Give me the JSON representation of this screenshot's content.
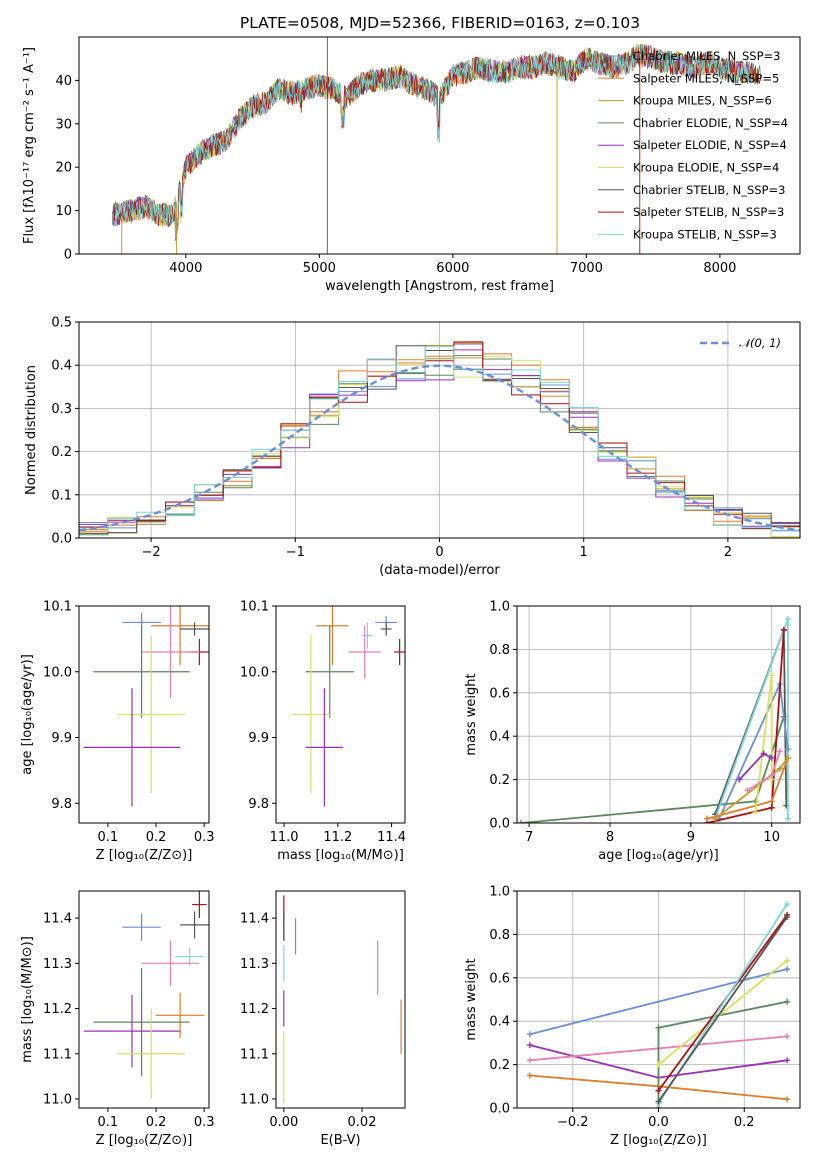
{
  "figure": {
    "title": "PLATE=0508, MJD=52366, FIBERID=0163, z=0.103"
  },
  "chart_data": [
    {
      "id": "spectrum",
      "type": "line",
      "xlabel": "wavelength [Angstrom, rest frame]",
      "ylabel": "Flux [fλ10⁻¹⁷ erg cm⁻² s⁻¹ A⁻¹]",
      "xlim": [
        3200,
        8600
      ],
      "ylim": [
        0,
        50
      ],
      "xticks": [
        4000,
        5000,
        6000,
        7000,
        8000
      ],
      "yticks": [
        0,
        10,
        20,
        30,
        40
      ],
      "grid": false,
      "legend_position": "top-right",
      "continuum_x": [
        3450,
        3600,
        3700,
        3800,
        3900,
        3950,
        4000,
        4100,
        4200,
        4300,
        4400,
        4500,
        4600,
        4700,
        4800,
        4900,
        5000,
        5100,
        5200,
        5300,
        5400,
        5500,
        5600,
        5700,
        5800,
        5900,
        6000,
        6100,
        6200,
        6300,
        6400,
        6500,
        6600,
        6700,
        6800,
        6900,
        7000,
        7100,
        7200,
        7300,
        7400,
        7500,
        7600,
        7700,
        7800,
        7900,
        8000,
        8100,
        8200,
        8300
      ],
      "continuum_y": [
        9,
        10,
        11,
        9,
        9,
        14,
        20,
        23,
        25,
        26,
        31,
        34,
        35,
        38,
        37,
        38,
        39,
        38,
        36,
        39,
        40,
        40,
        41,
        39,
        38,
        36,
        41,
        42,
        43,
        42,
        42,
        43,
        43,
        44,
        43,
        42,
        45,
        44,
        43,
        44,
        46,
        45,
        44,
        44,
        43,
        44,
        43,
        42,
        42,
        41
      ],
      "series": [
        {
          "name": "Chabrier MILES, N_SSP=3",
          "color": "#6a8fd8"
        },
        {
          "name": "Salpeter MILES, N_SSP=5",
          "color": "#e07b2c"
        },
        {
          "name": "Kroupa MILES, N_SSP=6",
          "color": "#c9962a"
        },
        {
          "name": "Chabrier ELODIE, N_SSP=4",
          "color": "#5a8a5a"
        },
        {
          "name": "Salpeter ELODIE, N_SSP=4",
          "color": "#9b30b8"
        },
        {
          "name": "Kroupa ELODIE, N_SSP=4",
          "color": "#d8e060"
        },
        {
          "name": "Chabrier STELIB, N_SSP=3",
          "color": "#555555"
        },
        {
          "name": "Salpeter STELIB, N_SSP=3",
          "color": "#b01010"
        },
        {
          "name": "Kroupa STELIB, N_SSP=3",
          "color": "#7ad8d8"
        }
      ]
    },
    {
      "id": "residuals",
      "type": "line",
      "xlabel": "(data-model)/error",
      "ylabel": "Normed distribution",
      "xlim": [
        -2.5,
        2.5
      ],
      "ylim": [
        0,
        0.5
      ],
      "xticks": [
        -2,
        -1,
        0,
        1,
        2
      ],
      "xtick_labels": [
        "−2",
        "−1",
        "0",
        "1",
        "2"
      ],
      "yticks": [
        0.0,
        0.1,
        0.2,
        0.3,
        0.4,
        0.5
      ],
      "grid": true,
      "legend_position": "top-right",
      "reference_curve": {
        "name": "𝒩(0, 1)",
        "mean": 0,
        "sigma": 1
      },
      "histogram_bin_edges": [
        -2.5,
        -2.3,
        -2.1,
        -1.9,
        -1.7,
        -1.5,
        -1.3,
        -1.1,
        -0.9,
        -0.7,
        -0.5,
        -0.3,
        -0.1,
        0.1,
        0.3,
        0.5,
        0.7,
        0.9,
        1.1,
        1.3,
        1.5,
        1.7,
        1.9,
        2.1,
        2.3,
        2.5
      ],
      "histogram_mean": [
        0.02,
        0.03,
        0.05,
        0.07,
        0.1,
        0.14,
        0.19,
        0.24,
        0.3,
        0.35,
        0.38,
        0.4,
        0.41,
        0.41,
        0.4,
        0.37,
        0.33,
        0.27,
        0.21,
        0.16,
        0.12,
        0.08,
        0.05,
        0.04,
        0.02
      ]
    },
    {
      "id": "age-vs-Z",
      "type": "scatter",
      "xlabel": "Z [log₁₀(Z/Z⊙)]",
      "ylabel": "age  [log₁₀(age/yr)]",
      "xlim": [
        0.04,
        0.31
      ],
      "ylim": [
        9.77,
        10.1
      ],
      "xticks": [
        0.1,
        0.2,
        0.3
      ],
      "yticks": [
        9.8,
        9.9,
        10.0,
        10.1
      ],
      "points": [
        {
          "x": 0.17,
          "y": 10.075,
          "xerr": 0.04,
          "yerr": 0.015,
          "color": "#6a8fd8"
        },
        {
          "x": 0.25,
          "y": 10.07,
          "xerr": 0.06,
          "yerr": 0.06,
          "color": "#e07b2c"
        },
        {
          "x": 0.28,
          "y": 10.065,
          "xerr": 0.03,
          "yerr": 0.01,
          "color": "#555555"
        },
        {
          "x": 0.29,
          "y": 10.03,
          "xerr": 0.02,
          "yerr": 0.02,
          "color": "#b01010"
        },
        {
          "x": 0.23,
          "y": 10.03,
          "xerr": 0.06,
          "yerr": 0.07,
          "color": "#e87fb0"
        },
        {
          "x": 0.17,
          "y": 10.0,
          "xerr": 0.1,
          "yerr": 0.07,
          "color": "#5a8a5a"
        },
        {
          "x": 0.19,
          "y": 9.935,
          "xerr": 0.07,
          "yerr": 0.12,
          "color": "#d8e060"
        },
        {
          "x": 0.15,
          "y": 9.885,
          "xerr": 0.1,
          "yerr": 0.09,
          "color": "#9b30b8"
        }
      ]
    },
    {
      "id": "age-vs-mass",
      "type": "scatter",
      "xlabel": "mass [log₁₀(M/M⊙)]",
      "ylabel": "",
      "xlim": [
        10.97,
        11.45
      ],
      "ylim": [
        9.77,
        10.1
      ],
      "xticks": [
        11.0,
        11.2,
        11.4
      ],
      "yticks": [
        9.8,
        9.9,
        10.0,
        10.1
      ],
      "points": [
        {
          "x": 11.38,
          "y": 10.075,
          "xerr": 0.04,
          "yerr": 0.01,
          "color": "#6a8fd8"
        },
        {
          "x": 11.38,
          "y": 10.065,
          "xerr": 0.02,
          "yerr": 0.01,
          "color": "#555555"
        },
        {
          "x": 11.31,
          "y": 10.055,
          "xerr": 0.02,
          "yerr": 0.02,
          "color": "#7ad8d8"
        },
        {
          "x": 11.43,
          "y": 10.03,
          "xerr": 0.02,
          "yerr": 0.02,
          "color": "#b01010"
        },
        {
          "x": 11.18,
          "y": 10.07,
          "xerr": 0.06,
          "yerr": 0.06,
          "color": "#e07b2c"
        },
        {
          "x": 11.3,
          "y": 10.03,
          "xerr": 0.06,
          "yerr": 0.04,
          "color": "#e87fb0"
        },
        {
          "x": 11.17,
          "y": 10.0,
          "xerr": 0.09,
          "yerr": 0.07,
          "color": "#5a8a5a"
        },
        {
          "x": 11.1,
          "y": 9.935,
          "xerr": 0.07,
          "yerr": 0.12,
          "color": "#d8e060"
        },
        {
          "x": 11.15,
          "y": 9.885,
          "xerr": 0.07,
          "yerr": 0.09,
          "color": "#9b30b8"
        }
      ]
    },
    {
      "id": "weight-vs-age",
      "type": "line",
      "xlabel": "age  [log₁₀(age/yr)]",
      "ylabel": "mass weight",
      "xlim": [
        6.85,
        10.35
      ],
      "ylim": [
        0,
        1
      ],
      "xticks": [
        7,
        8,
        9,
        10
      ],
      "yticks": [
        0.0,
        0.2,
        0.4,
        0.6,
        0.8,
        1.0
      ],
      "grid": true,
      "series": [
        {
          "color": "#5a8a5a",
          "x": [
            6.9,
            9.8,
            10.15
          ],
          "y": [
            0.0,
            0.1,
            0.49
          ]
        },
        {
          "color": "#555555",
          "x": [
            9.3,
            10.15,
            10.18
          ],
          "y": [
            0.04,
            0.89,
            0.08
          ]
        },
        {
          "color": "#7ad8d8",
          "x": [
            9.3,
            10.2,
            10.2
          ],
          "y": [
            0.02,
            0.94,
            0.02
          ]
        },
        {
          "color": "#6a8fd8",
          "x": [
            9.35,
            10.1,
            10.2
          ],
          "y": [
            0.02,
            0.64,
            0.34
          ]
        },
        {
          "color": "#b01010",
          "x": [
            9.2,
            10.0,
            10.15
          ],
          "y": [
            0.0,
            0.07,
            0.89
          ]
        },
        {
          "color": "#e07b2c",
          "x": [
            9.2,
            10.0,
            10.2
          ],
          "y": [
            0.02,
            0.1,
            0.3
          ]
        },
        {
          "color": "#c9962a",
          "x": [
            9.3,
            10.1,
            10.2
          ],
          "y": [
            0.02,
            0.25,
            0.3
          ]
        },
        {
          "color": "#d8e060",
          "x": [
            9.8,
            10.0,
            10.0
          ],
          "y": [
            0.05,
            0.68,
            0.2
          ]
        },
        {
          "color": "#9b30b8",
          "x": [
            9.6,
            9.9,
            10.0
          ],
          "y": [
            0.2,
            0.32,
            0.3
          ]
        },
        {
          "color": "#e87fb0",
          "x": [
            9.7,
            10.0,
            10.1
          ],
          "y": [
            0.15,
            0.22,
            0.33
          ]
        }
      ]
    },
    {
      "id": "mass-vs-Z",
      "type": "scatter",
      "xlabel": "Z [log₁₀(Z/Z⊙)]",
      "ylabel": "mass [log₁₀(M/M⊙)]",
      "xlim": [
        0.04,
        0.31
      ],
      "ylim": [
        10.98,
        11.46
      ],
      "xticks": [
        0.1,
        0.2,
        0.3
      ],
      "yticks": [
        11.0,
        11.1,
        11.2,
        11.3,
        11.4
      ],
      "points": [
        {
          "x": 0.29,
          "y": 11.43,
          "xerr": 0.015,
          "yerr": 0.03,
          "color": "#b01010"
        },
        {
          "x": 0.28,
          "y": 11.385,
          "xerr": 0.03,
          "yerr": 0.03,
          "color": "#555555"
        },
        {
          "x": 0.17,
          "y": 11.38,
          "xerr": 0.04,
          "yerr": 0.03,
          "color": "#6a8fd8"
        },
        {
          "x": 0.27,
          "y": 11.315,
          "xerr": 0.03,
          "yerr": 0.02,
          "color": "#7ad8d8"
        },
        {
          "x": 0.23,
          "y": 11.3,
          "xerr": 0.06,
          "yerr": 0.05,
          "color": "#e87fb0"
        },
        {
          "x": 0.25,
          "y": 11.185,
          "xerr": 0.05,
          "yerr": 0.05,
          "color": "#e07b2c"
        },
        {
          "x": 0.17,
          "y": 11.17,
          "xerr": 0.1,
          "yerr": 0.12,
          "color": "#5a8a5a"
        },
        {
          "x": 0.15,
          "y": 11.15,
          "xerr": 0.1,
          "yerr": 0.08,
          "color": "#9b30b8"
        },
        {
          "x": 0.19,
          "y": 11.1,
          "xerr": 0.07,
          "yerr": 0.1,
          "color": "#d8e060"
        }
      ]
    },
    {
      "id": "mass-vs-EBV",
      "type": "scatter",
      "xlabel": "E(B-V)",
      "ylabel": "",
      "xlim": [
        -0.002,
        0.031
      ],
      "ylim": [
        10.98,
        11.46
      ],
      "xticks": [
        0.0,
        0.02
      ],
      "yticks": [
        11.0,
        11.1,
        11.2,
        11.3,
        11.4
      ],
      "points": [
        {
          "x": 0.0,
          "y": 11.4,
          "xerr": 0,
          "yerr": 0.05,
          "color": "#b01010"
        },
        {
          "x": 0.0,
          "y": 11.38,
          "xerr": 0,
          "yerr": 0.03,
          "color": "#555555"
        },
        {
          "x": 0.003,
          "y": 11.36,
          "xerr": 0,
          "yerr": 0.04,
          "color": "#6a8fd8"
        },
        {
          "x": 0.0,
          "y": 11.3,
          "xerr": 0,
          "yerr": 0.04,
          "color": "#7ad8d8"
        },
        {
          "x": 0.024,
          "y": 11.29,
          "xerr": 0,
          "yerr": 0.06,
          "color": "#e87fb0"
        },
        {
          "x": 0.0,
          "y": 11.2,
          "xerr": 0,
          "yerr": 0.04,
          "color": "#9b30b8"
        },
        {
          "x": 0.03,
          "y": 11.16,
          "xerr": 0,
          "yerr": 0.06,
          "color": "#e07b2c"
        },
        {
          "x": 0.0,
          "y": 11.07,
          "xerr": 0,
          "yerr": 0.08,
          "color": "#d8e060"
        }
      ]
    },
    {
      "id": "weight-vs-Z",
      "type": "line",
      "xlabel": "Z [log₁₀(Z/Z⊙)]",
      "ylabel": "mass weight",
      "xlim": [
        -0.33,
        0.33
      ],
      "ylim": [
        0,
        1
      ],
      "xticks": [
        -0.2,
        0.0,
        0.2
      ],
      "xtick_labels": [
        "−0.2",
        "0.0",
        "0.2"
      ],
      "yticks": [
        0.0,
        0.2,
        0.4,
        0.6,
        0.8,
        1.0
      ],
      "grid": true,
      "series": [
        {
          "color": "#6a8fd8",
          "x": [
            -0.3,
            0.3
          ],
          "y": [
            0.34,
            0.64
          ]
        },
        {
          "color": "#9b30b8",
          "x": [
            -0.3,
            0.0,
            0.3
          ],
          "y": [
            0.29,
            0.14,
            0.22
          ]
        },
        {
          "color": "#e87fb0",
          "x": [
            -0.3,
            0.3
          ],
          "y": [
            0.22,
            0.33
          ]
        },
        {
          "color": "#e07b2c",
          "x": [
            -0.3,
            0.0,
            0.3
          ],
          "y": [
            0.15,
            0.1,
            0.04
          ]
        },
        {
          "color": "#5a8a5a",
          "x": [
            0.0,
            0.0,
            0.3
          ],
          "y": [
            0.0,
            0.37,
            0.49
          ]
        },
        {
          "color": "#d8e060",
          "x": [
            0.0,
            0.3
          ],
          "y": [
            0.2,
            0.68
          ]
        },
        {
          "color": "#b01010",
          "x": [
            0.0,
            0.3
          ],
          "y": [
            0.08,
            0.89
          ]
        },
        {
          "color": "#7ad8d8",
          "x": [
            0.0,
            0.3
          ],
          "y": [
            0.02,
            0.94
          ]
        },
        {
          "color": "#555555",
          "x": [
            0.0,
            0.3
          ],
          "y": [
            0.03,
            0.88
          ]
        }
      ]
    }
  ]
}
